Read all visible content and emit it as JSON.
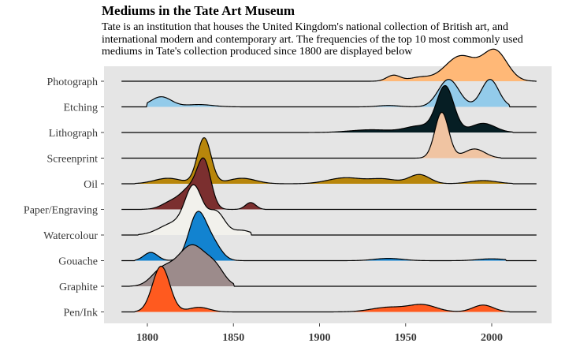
{
  "chart_data": {
    "type": "area",
    "subtype": "ridgeline",
    "title": "Mediums in the Tate Art Museum",
    "subtitle": "Tate is an institution that houses the United Kingdom's national collection of British art, and international modern and contemporary art. The frequencies of the top 10 most commonly used mediums in Tate's collection produced since 1800 are displayed below",
    "xlabel": "",
    "ylabel": "",
    "xlim": [
      1785,
      2026
    ],
    "xticks": [
      1800,
      1850,
      1900,
      1950,
      2000
    ],
    "grid": false,
    "background": "#e5e5e5",
    "series": [
      {
        "name": "Pen/Ink",
        "fill": "#ff5a1f",
        "range": [
          1793,
          2010
        ],
        "peaks": [
          {
            "x": 1808,
            "w": 5,
            "h": 1.0
          },
          {
            "x": 1830,
            "w": 6,
            "h": 0.1
          },
          {
            "x": 1940,
            "w": 10,
            "h": 0.1
          },
          {
            "x": 1960,
            "w": 8,
            "h": 0.15
          },
          {
            "x": 1995,
            "w": 6,
            "h": 0.15
          }
        ]
      },
      {
        "name": "Graphite",
        "fill": "#9c8b8b",
        "range": [
          1790,
          1850
        ],
        "peaks": [
          {
            "x": 1808,
            "w": 6,
            "h": 0.3
          },
          {
            "x": 1826,
            "w": 9,
            "h": 0.9
          },
          {
            "x": 1840,
            "w": 5,
            "h": 0.25
          }
        ]
      },
      {
        "name": "Gouache",
        "fill": "#1283d0",
        "range": [
          1793,
          2008
        ],
        "peaks": [
          {
            "x": 1802,
            "w": 4,
            "h": 0.18
          },
          {
            "x": 1829,
            "w": 5,
            "h": 1.0
          },
          {
            "x": 1838,
            "w": 5,
            "h": 0.35
          },
          {
            "x": 1940,
            "w": 8,
            "h": 0.05
          },
          {
            "x": 2000,
            "w": 8,
            "h": 0.04
          }
        ]
      },
      {
        "name": "Watercolour",
        "fill": "#f2f1ec",
        "range": [
          1795,
          1860
        ],
        "peaks": [
          {
            "x": 1815,
            "w": 8,
            "h": 0.25
          },
          {
            "x": 1827,
            "w": 5,
            "h": 1.0
          },
          {
            "x": 1840,
            "w": 5,
            "h": 0.5
          },
          {
            "x": 1855,
            "w": 5,
            "h": 0.1
          }
        ]
      },
      {
        "name": "Paper/Engraving",
        "fill": "#7b2f2f",
        "range": [
          1797,
          1868
        ],
        "peaks": [
          {
            "x": 1815,
            "w": 6,
            "h": 0.18
          },
          {
            "x": 1833,
            "w": 4,
            "h": 1.0
          },
          {
            "x": 1825,
            "w": 5,
            "h": 0.4
          },
          {
            "x": 1860,
            "w": 3,
            "h": 0.15
          }
        ]
      },
      {
        "name": "Oil",
        "fill": "#b8860b",
        "range": [
          1793,
          2012
        ],
        "peaks": [
          {
            "x": 1833,
            "w": 4,
            "h": 1.0
          },
          {
            "x": 1812,
            "w": 8,
            "h": 0.12
          },
          {
            "x": 1855,
            "w": 8,
            "h": 0.12
          },
          {
            "x": 1915,
            "w": 10,
            "h": 0.13
          },
          {
            "x": 1937,
            "w": 8,
            "h": 0.1
          },
          {
            "x": 1958,
            "w": 6,
            "h": 0.2
          },
          {
            "x": 1995,
            "w": 8,
            "h": 0.07
          }
        ]
      },
      {
        "name": "Screenprint",
        "fill": "#f0c4a2",
        "range": [
          1955,
          2005
        ],
        "peaks": [
          {
            "x": 1971,
            "w": 4,
            "h": 1.0
          },
          {
            "x": 1990,
            "w": 6,
            "h": 0.2
          }
        ]
      },
      {
        "name": "Lithograph",
        "fill": "#061e24",
        "range": [
          1797,
          2012
        ],
        "peaks": [
          {
            "x": 1973,
            "w": 5,
            "h": 1.0
          },
          {
            "x": 1958,
            "w": 8,
            "h": 0.14
          },
          {
            "x": 1930,
            "w": 12,
            "h": 0.06
          },
          {
            "x": 1995,
            "w": 7,
            "h": 0.2
          }
        ]
      },
      {
        "name": "Etching",
        "fill": "#93cbea",
        "range": [
          1800,
          2010
        ],
        "peaks": [
          {
            "x": 1808,
            "w": 6,
            "h": 0.22
          },
          {
            "x": 1830,
            "w": 8,
            "h": 0.05
          },
          {
            "x": 1975,
            "w": 6,
            "h": 0.6
          },
          {
            "x": 1999,
            "w": 5,
            "h": 0.6
          },
          {
            "x": 1940,
            "w": 6,
            "h": 0.03
          }
        ]
      },
      {
        "name": "Photograph",
        "fill": "#ffb877",
        "range": [
          1920,
          2025
        ],
        "peaks": [
          {
            "x": 1943,
            "w": 4,
            "h": 0.13
          },
          {
            "x": 1958,
            "w": 6,
            "h": 0.08
          },
          {
            "x": 1982,
            "w": 9,
            "h": 0.55
          },
          {
            "x": 2002,
            "w": 7,
            "h": 0.65
          }
        ]
      }
    ]
  }
}
